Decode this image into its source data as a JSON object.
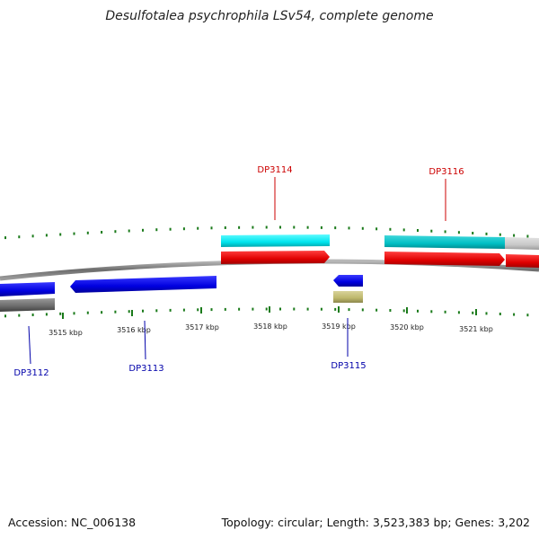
{
  "title": "Desulfotalea psychrophila LSv54, complete genome",
  "footer": {
    "accession": "Accession: NC_006138",
    "summary": "Topology: circular; Length: 3,523,383 bp; Genes: 3,202"
  },
  "colors": {
    "backbone": "#8a8a8a",
    "tick": "#1a7a1a",
    "label_top": "#cc0000",
    "label_bottom": "#0000aa",
    "cds_forward": "#ff0000",
    "cds_reverse": "#0000ee",
    "rna_forward": "#00e5ee",
    "rna_forward_dim": "#00c2c6",
    "gray_feature": "#6a6a6a",
    "light_gray_feature": "#c8c8c8",
    "khaki_feature": "#bdb76b"
  },
  "scale": {
    "unit": "kbp",
    "ticks": [
      {
        "label": "3515 kbp"
      },
      {
        "label": "3516 kbp"
      },
      {
        "label": "3517 kbp"
      },
      {
        "label": "3518 kbp"
      },
      {
        "label": "3519 kbp"
      },
      {
        "label": "3520 kbp"
      },
      {
        "label": "3521 kbp"
      }
    ]
  },
  "gene_labels": {
    "top": [
      {
        "name": "DP3114"
      },
      {
        "name": "DP3116"
      }
    ],
    "bottom": [
      {
        "name": "DP3112"
      },
      {
        "name": "DP3113"
      },
      {
        "name": "DP3115"
      }
    ]
  }
}
